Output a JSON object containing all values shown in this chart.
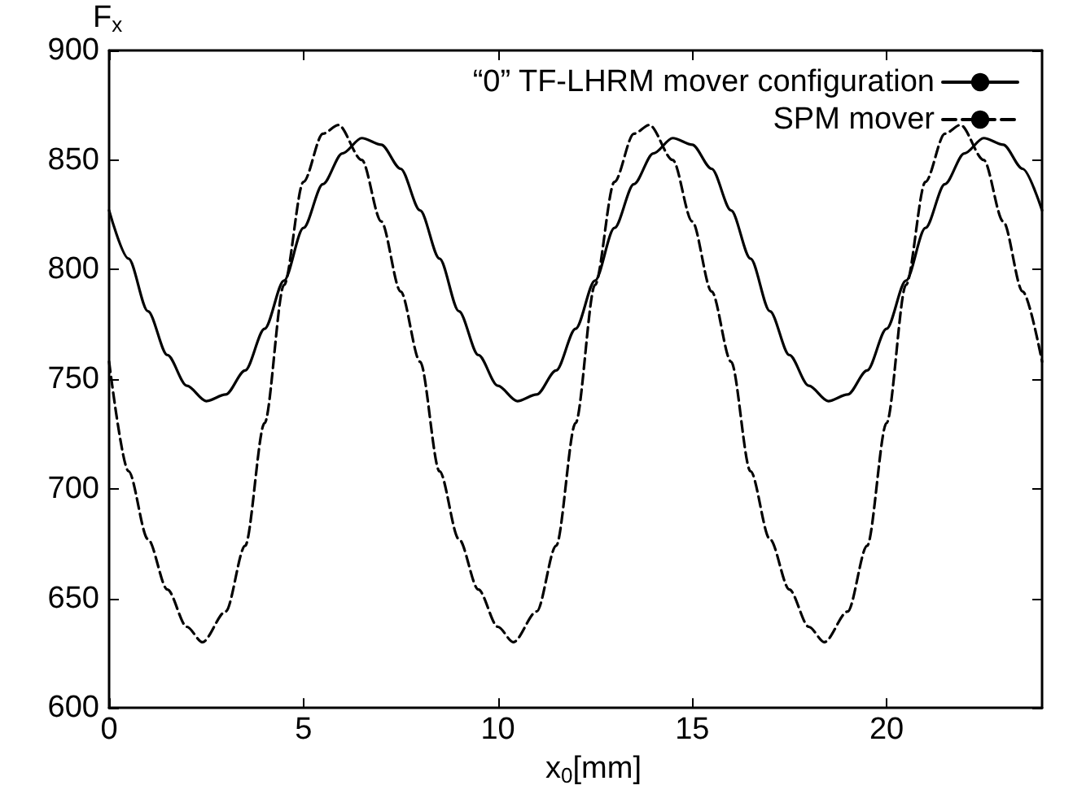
{
  "chart_data": {
    "type": "line",
    "xlabel": "x$_{0}$[mm]",
    "ylabel": "F$_{x}$",
    "xlim": [
      0,
      24
    ],
    "xticks": [
      0,
      5,
      10,
      15,
      20
    ],
    "ylim": [
      600,
      900
    ],
    "yticks": [
      600,
      650,
      700,
      750,
      800,
      850,
      900
    ],
    "legend": "top right",
    "marker": "none",
    "series": [
      {
        "name": "“0” TF-LHRM mover configuration",
        "color": "#000000",
        "line_style": "solid",
        "x": [
          0,
          0.5,
          1,
          1.5,
          2,
          2.5,
          3,
          3.5,
          4,
          4.5,
          5,
          5.5,
          6,
          6.5,
          7,
          7.5,
          8,
          8.5,
          9,
          9.5,
          10,
          10.5,
          11,
          11.5,
          12,
          12.5,
          13,
          13.5,
          14,
          14.5,
          15,
          15.5,
          16,
          16.5,
          17,
          17.5,
          18,
          18.5,
          19,
          19.5,
          20,
          20.5,
          21,
          21.5,
          22,
          22.5,
          23,
          23.5,
          24
        ],
        "values": [
          827,
          805,
          781,
          761,
          747,
          740,
          743,
          754,
          773,
          795,
          819,
          839,
          853,
          860,
          857,
          846,
          827,
          805,
          781,
          761,
          747,
          740,
          743,
          754,
          773,
          795,
          819,
          839,
          853,
          860,
          857,
          846,
          827,
          805,
          781,
          761,
          747,
          740,
          743,
          754,
          773,
          795,
          819,
          839,
          853,
          860,
          857,
          846,
          827
        ]
      },
      {
        "name": "SPM mover",
        "color": "#000000",
        "line_style": "dashed",
        "x": [
          0,
          0.5,
          1,
          1.5,
          2,
          2.4,
          3,
          3.5,
          4,
          4.5,
          5,
          5.5,
          5.9,
          6.5,
          7,
          7.5,
          8,
          8.5,
          9,
          9.5,
          10,
          10.4,
          11,
          11.5,
          12,
          12.5,
          13,
          13.5,
          13.9,
          14.5,
          15,
          15.5,
          16,
          16.5,
          17,
          17.5,
          18,
          18.4,
          19,
          19.5,
          20,
          20.5,
          21,
          21.5,
          21.9,
          22.5,
          23,
          23.5,
          24
        ],
        "values": [
          758,
          708,
          677,
          654,
          637,
          630,
          644,
          674,
          730,
          793,
          840,
          862,
          866,
          850,
          822,
          790,
          758,
          708,
          677,
          654,
          637,
          630,
          644,
          674,
          730,
          793,
          840,
          862,
          866,
          850,
          822,
          790,
          758,
          708,
          677,
          654,
          637,
          630,
          644,
          674,
          730,
          793,
          840,
          862,
          866,
          850,
          822,
          790,
          758
        ]
      }
    ]
  }
}
